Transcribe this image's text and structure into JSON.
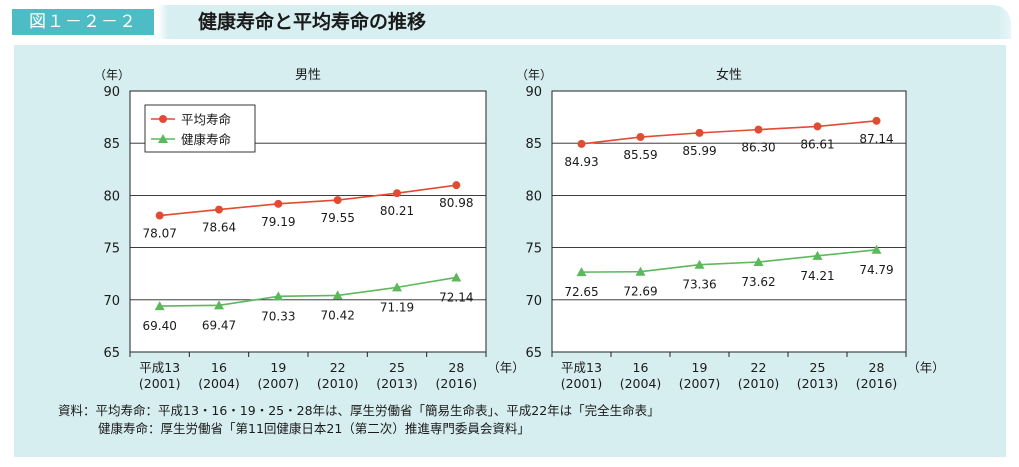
{
  "figure_label": "図１－２－２",
  "figure_title": "健康寿命と平均寿命の推移",
  "source": {
    "line1": "資料：平均寿命：平成13・16・19・25・28年は、厚生労働省「簡易生命表」、平成22年は「完全生命表」",
    "line2": "健康寿命：厚生労働省「第11回健康日本21（第二次）推進専門委員会資料」"
  },
  "colors": {
    "heikin": "#e24a33",
    "kenko": "#5cb85c",
    "title_badge": "#4dbcc4",
    "panel": "#d7eef0"
  },
  "chart_data": [
    {
      "type": "line",
      "title": "男性",
      "ylabel": "（年）",
      "xlabel": "（年）",
      "ylim": [
        65,
        90
      ],
      "yticks": [
        65,
        70,
        75,
        80,
        85,
        90
      ],
      "grid": true,
      "legend": "top-left",
      "categories": [
        {
          "era": "平成13",
          "year": "(2001)"
        },
        {
          "era": "16",
          "year": "(2004)"
        },
        {
          "era": "19",
          "year": "(2007)"
        },
        {
          "era": "22",
          "year": "(2010)"
        },
        {
          "era": "25",
          "year": "(2013)"
        },
        {
          "era": "28",
          "year": "(2016)"
        }
      ],
      "series": [
        {
          "name": "平均寿命",
          "marker": "circle",
          "values": [
            78.07,
            78.64,
            79.19,
            79.55,
            80.21,
            80.98
          ],
          "labels": [
            "78.07",
            "78.64",
            "79.19",
            "79.55",
            "80.21",
            "80.98"
          ]
        },
        {
          "name": "健康寿命",
          "marker": "triangle",
          "values": [
            69.4,
            69.47,
            70.33,
            70.42,
            71.19,
            72.14
          ],
          "labels": [
            "69.40",
            "69.47",
            "70.33",
            "70.42",
            "71.19",
            "72.14"
          ]
        }
      ]
    },
    {
      "type": "line",
      "title": "女性",
      "ylabel": "（年）",
      "xlabel": "（年）",
      "ylim": [
        65,
        90
      ],
      "yticks": [
        65,
        70,
        75,
        80,
        85,
        90
      ],
      "grid": true,
      "categories": [
        {
          "era": "平成13",
          "year": "(2001)"
        },
        {
          "era": "16",
          "year": "(2004)"
        },
        {
          "era": "19",
          "year": "(2007)"
        },
        {
          "era": "22",
          "year": "(2010)"
        },
        {
          "era": "25",
          "year": "(2013)"
        },
        {
          "era": "28",
          "year": "(2016)"
        }
      ],
      "series": [
        {
          "name": "平均寿命",
          "marker": "circle",
          "values": [
            84.93,
            85.59,
            85.99,
            86.3,
            86.61,
            87.14
          ],
          "labels": [
            "84.93",
            "85.59",
            "85.99",
            "86.30",
            "86.61",
            "87.14"
          ]
        },
        {
          "name": "健康寿命",
          "marker": "triangle",
          "values": [
            72.65,
            72.69,
            73.36,
            73.62,
            74.21,
            74.79
          ],
          "labels": [
            "72.65",
            "72.69",
            "73.36",
            "73.62",
            "74.21",
            "74.79"
          ]
        }
      ]
    }
  ]
}
